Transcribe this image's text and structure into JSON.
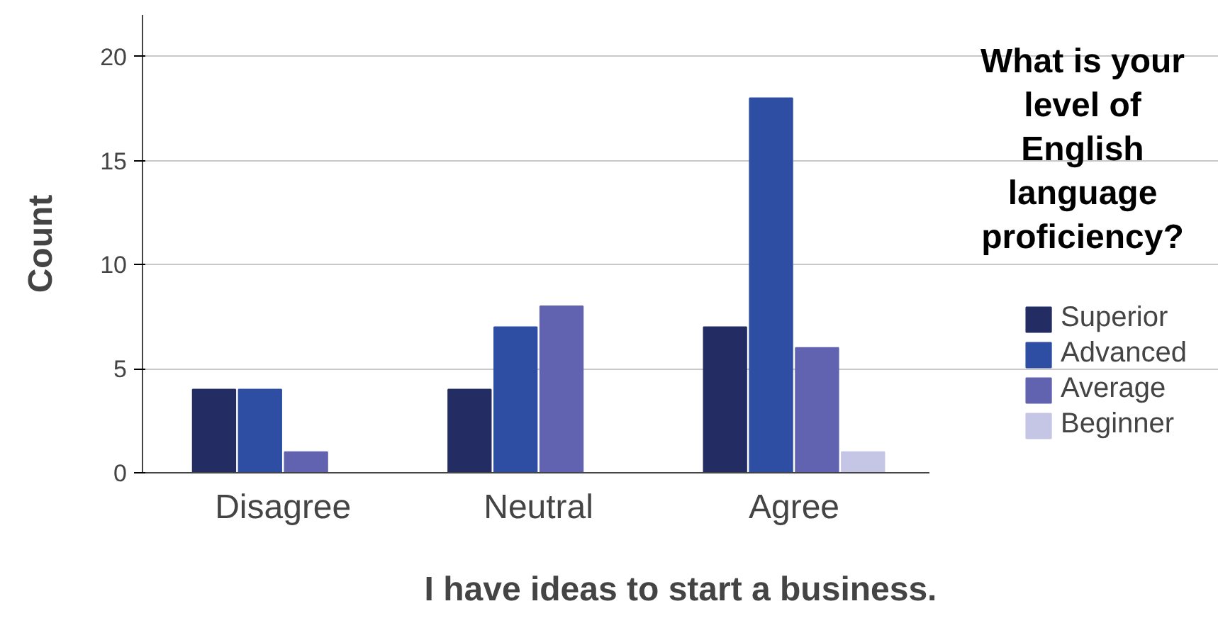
{
  "chart_data": {
    "type": "bar",
    "xlabel": "I have ideas to start a business.",
    "ylabel": "Count",
    "legend_title": "What is your level of English language proficiency?",
    "categories": [
      "Disagree",
      "Neutral",
      "Agree"
    ],
    "series": [
      {
        "name": "Superior",
        "color": "#232d63",
        "values": [
          4,
          4,
          7
        ]
      },
      {
        "name": "Advanced",
        "color": "#2e4ea3",
        "values": [
          4,
          7,
          18
        ]
      },
      {
        "name": "Average",
        "color": "#6163b0",
        "values": [
          1,
          8,
          6
        ]
      },
      {
        "name": "Beginner",
        "color": "#c5c5e5",
        "values": [
          0,
          0,
          1
        ]
      }
    ],
    "ylim": [
      0,
      22
    ],
    "yticks": [
      0,
      5,
      10,
      15,
      20
    ],
    "grid": "y",
    "legend": "right"
  }
}
